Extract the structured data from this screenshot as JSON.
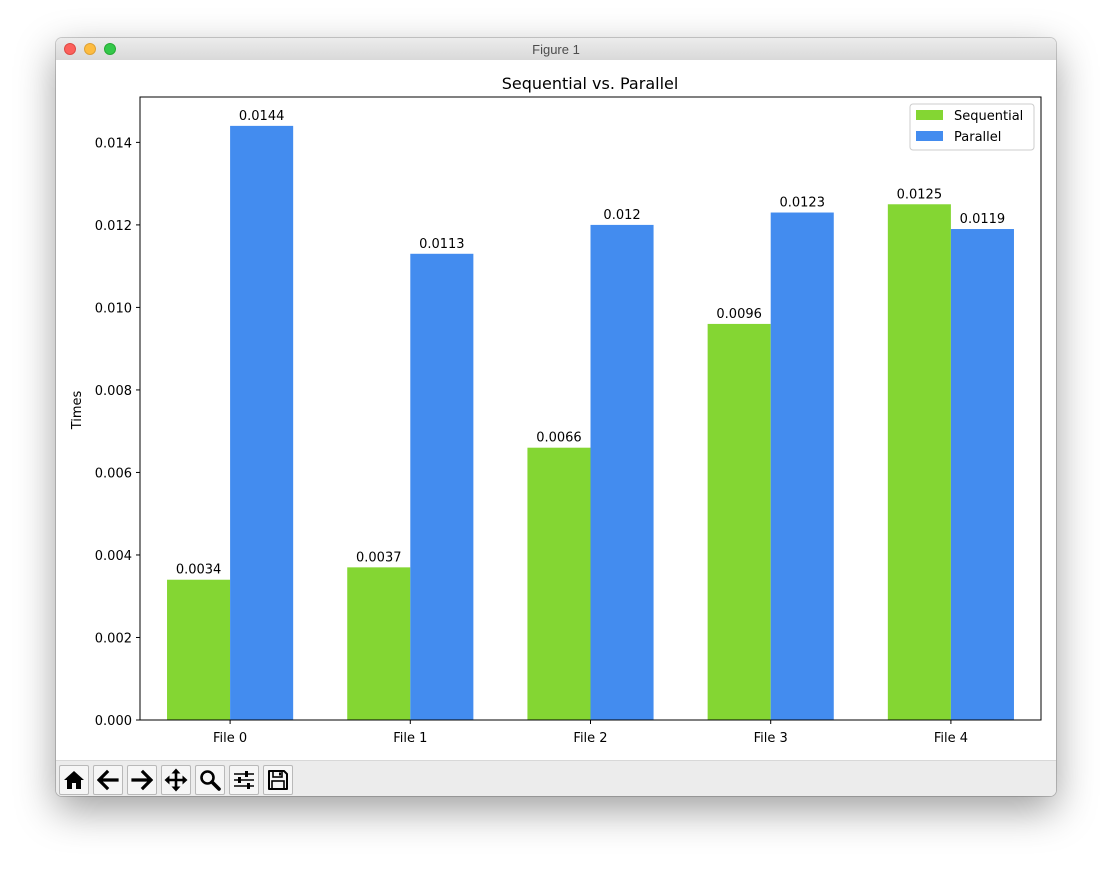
{
  "window": {
    "title": "Figure 1"
  },
  "toolbar": {
    "buttons": [
      {
        "name": "home",
        "icon": "home-icon"
      },
      {
        "name": "back",
        "icon": "arrow-left-icon"
      },
      {
        "name": "forward",
        "icon": "arrow-right-icon"
      },
      {
        "name": "pan",
        "icon": "move-icon"
      },
      {
        "name": "zoom",
        "icon": "magnifier-icon"
      },
      {
        "name": "configure-subplots",
        "icon": "sliders-icon"
      },
      {
        "name": "save",
        "icon": "floppy-disk-icon"
      }
    ]
  },
  "chart_data": {
    "type": "bar",
    "title": "Sequential vs. Parallel",
    "xlabel": "",
    "ylabel": "Times",
    "categories": [
      "File 0",
      "File 1",
      "File 2",
      "File 3",
      "File 4"
    ],
    "series": [
      {
        "name": "Sequential",
        "color": "#84d633",
        "values": [
          0.0034,
          0.0037,
          0.0066,
          0.0096,
          0.0125
        ],
        "labels": [
          "0.0034",
          "0.0037",
          "0.0066",
          "0.0096",
          "0.0125"
        ]
      },
      {
        "name": "Parallel",
        "color": "#438cef",
        "values": [
          0.0144,
          0.0113,
          0.012,
          0.0123,
          0.0119
        ],
        "labels": [
          "0.0144",
          "0.0113",
          "0.012",
          "0.0123",
          "0.0119"
        ]
      }
    ],
    "ylim": [
      0,
      0.0151
    ],
    "yticks": [
      0,
      0.002,
      0.004,
      0.006,
      0.008,
      0.01,
      0.012,
      0.014
    ],
    "ytick_labels": [
      "0.000",
      "0.002",
      "0.004",
      "0.006",
      "0.008",
      "0.010",
      "0.012",
      "0.014"
    ],
    "legend": {
      "placement": "top-right"
    },
    "grid": false
  }
}
